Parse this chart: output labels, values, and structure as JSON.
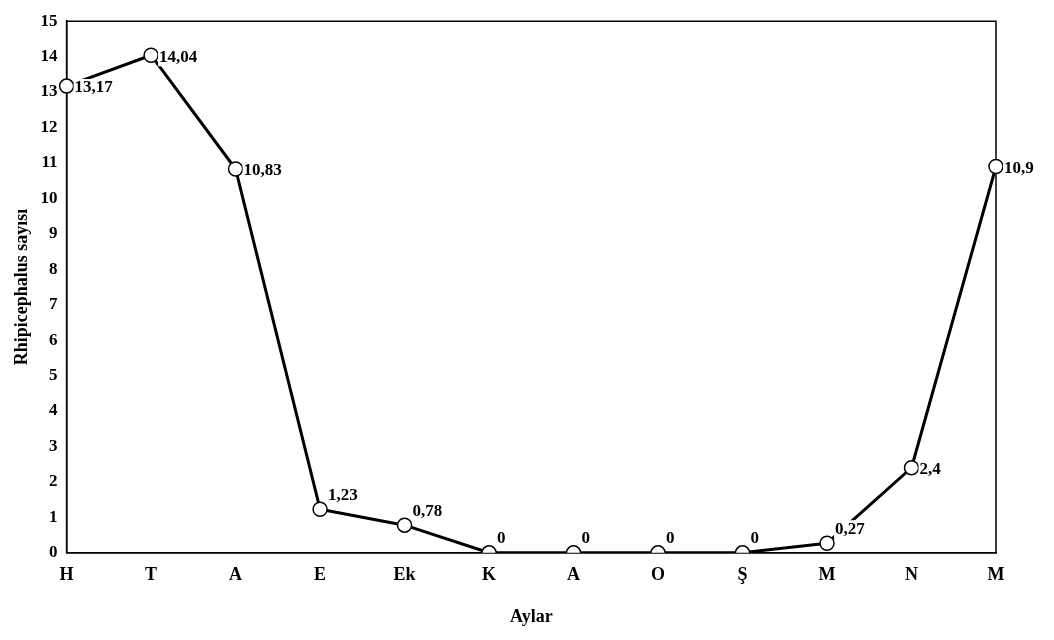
{
  "chart_data": {
    "type": "line",
    "xlabel": "Aylar",
    "ylabel": "Rhipicephalus sayısı",
    "categories": [
      "H",
      "T",
      "A",
      "E",
      "Ek",
      "K",
      "A",
      "O",
      "Ş",
      "M",
      "N",
      "M"
    ],
    "series": [
      {
        "color": "#000000",
        "values": [
          13.17,
          14.04,
          10.83,
          1.23,
          0.78,
          0,
          0,
          0,
          0,
          0.27,
          2.4,
          10.9
        ],
        "value_labels": [
          "13,17",
          "14,04",
          "10,83",
          "1,23",
          "0,78",
          "0",
          "0",
          "0",
          "0",
          "0,27",
          "2,4",
          "10,9"
        ]
      }
    ],
    "ylim": [
      0,
      15
    ],
    "yticks": [
      0,
      1,
      2,
      3,
      4,
      5,
      6,
      7,
      8,
      9,
      10,
      11,
      12,
      13,
      14,
      15
    ],
    "grid": false,
    "legend": false,
    "marker": "circle",
    "line_style": "solid"
  }
}
